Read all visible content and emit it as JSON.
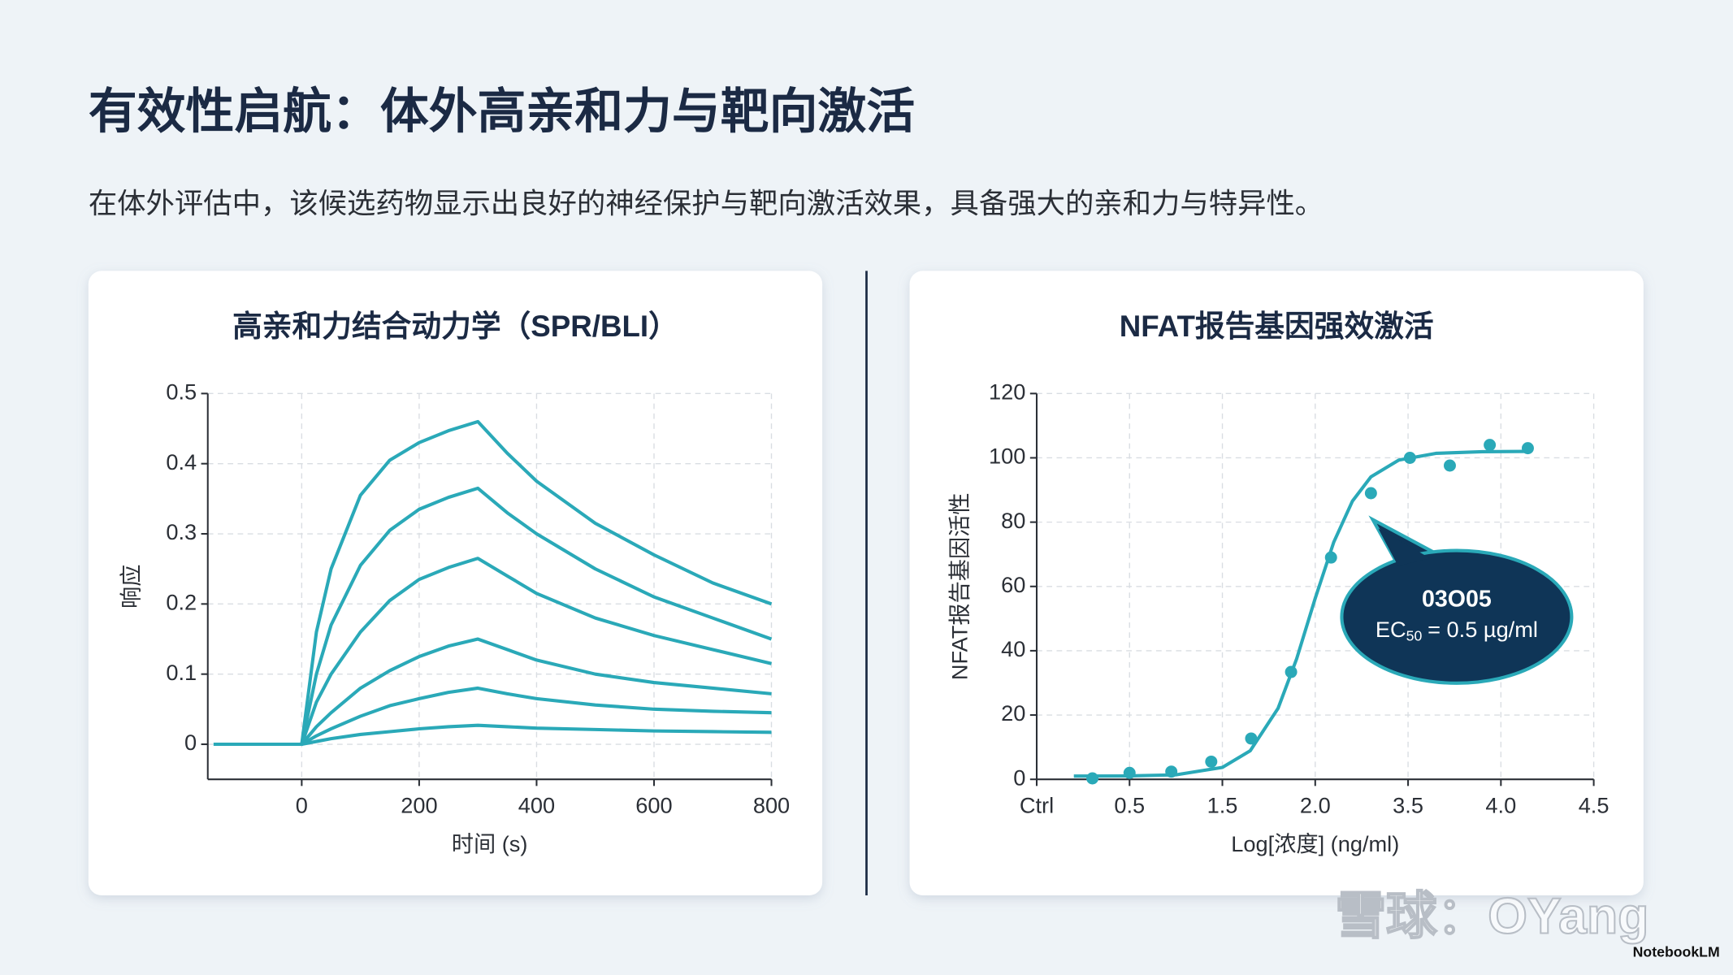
{
  "title": "有效性启航：体外高亲和力与靶向激活",
  "subtitle": "在体外评估中，该候选药物显示出良好的神经保护与靶向激活效果，具备强大的亲和力与特异性。",
  "watermark": "雪球：OYang",
  "brand": "NotebookLM",
  "chart_data": [
    {
      "type": "line",
      "title": "高亲和力结合动力学（SPR/BLI）",
      "x_label": "时间 (s)",
      "y_label": "响应",
      "x": [
        -150,
        -100,
        -50,
        0,
        25,
        50,
        100,
        150,
        200,
        250,
        300,
        350,
        400,
        500,
        600,
        700,
        800
      ],
      "series": [
        {
          "color": "#2aa9b8",
          "values": [
            0,
            0,
            0,
            0,
            0.16,
            0.25,
            0.355,
            0.405,
            0.43,
            0.447,
            0.46,
            0.415,
            0.375,
            0.315,
            0.27,
            0.23,
            0.2
          ]
        },
        {
          "color": "#2aa9b8",
          "values": [
            0,
            0,
            0,
            0,
            0.1,
            0.17,
            0.255,
            0.305,
            0.335,
            0.352,
            0.365,
            0.33,
            0.3,
            0.25,
            0.21,
            0.18,
            0.15
          ]
        },
        {
          "color": "#2aa9b8",
          "values": [
            0,
            0,
            0,
            0,
            0.06,
            0.1,
            0.16,
            0.205,
            0.235,
            0.252,
            0.265,
            0.24,
            0.215,
            0.18,
            0.155,
            0.135,
            0.115
          ]
        },
        {
          "color": "#2aa9b8",
          "values": [
            0,
            0,
            0,
            0,
            0.025,
            0.045,
            0.08,
            0.105,
            0.125,
            0.14,
            0.15,
            0.135,
            0.12,
            0.1,
            0.088,
            0.08,
            0.072
          ]
        },
        {
          "color": "#2aa9b8",
          "values": [
            0,
            0,
            0,
            0,
            0.012,
            0.022,
            0.04,
            0.055,
            0.065,
            0.074,
            0.08,
            0.072,
            0.065,
            0.056,
            0.05,
            0.047,
            0.045
          ]
        },
        {
          "color": "#2aa9b8",
          "values": [
            0,
            0,
            0,
            0,
            0.004,
            0.008,
            0.014,
            0.018,
            0.022,
            0.025,
            0.027,
            0.025,
            0.023,
            0.021,
            0.019,
            0.018,
            0.017
          ]
        }
      ],
      "xlim": [
        -160,
        800
      ],
      "ylim": [
        -0.05,
        0.5
      ],
      "xticks": [
        0,
        200,
        400,
        600,
        800
      ],
      "yticks": [
        0,
        0.1,
        0.2,
        0.3,
        0.4,
        0.5
      ],
      "grid": true
    },
    {
      "type": "scatter",
      "title": "NFAT报告基因强效激活",
      "x_label": "Log[浓度] (ng/ml)",
      "y_label": "NFAT报告基因活性",
      "color": "#2aa9b8",
      "x": [
        0.6,
        1.0,
        1.45,
        1.88,
        2.31,
        2.74,
        3.17,
        3.6,
        4.02,
        4.45,
        4.88,
        5.29
      ],
      "values": [
        0.3,
        2,
        2.4,
        5.5,
        12.7,
        33.4,
        69,
        89,
        100,
        97.6,
        104,
        103
      ],
      "fit": {
        "x": [
          0.4,
          1.0,
          1.5,
          2.0,
          2.3,
          2.6,
          2.8,
          3.0,
          3.2,
          3.4,
          3.6,
          3.9,
          4.3,
          4.8,
          5.3
        ],
        "values": [
          1.0,
          1.06,
          1.4,
          3.7,
          8.9,
          22.1,
          37.5,
          56.3,
          73.8,
          86.5,
          94.1,
          99.3,
          101.4,
          101.9,
          102
        ]
      },
      "xlim": [
        0,
        6
      ],
      "ylim": [
        0,
        120
      ],
      "xticks": [
        {
          "value": 0,
          "label": "Ctrl"
        },
        {
          "value": 1,
          "label": "0.5"
        },
        {
          "value": 2,
          "label": "1.5"
        },
        {
          "value": 3,
          "label": "2.0"
        },
        {
          "value": 4,
          "label": "3.5"
        },
        {
          "value": 5,
          "label": "4.0"
        },
        {
          "value": 6,
          "label": "4.5"
        }
      ],
      "yticks": [
        0,
        20,
        40,
        60,
        80,
        100,
        120
      ],
      "grid": true,
      "annotation": {
        "title": "03O05",
        "label": "EC",
        "subscript": "50",
        "text": "= 0.5 µg/ml",
        "color": "#0f3557"
      }
    }
  ]
}
